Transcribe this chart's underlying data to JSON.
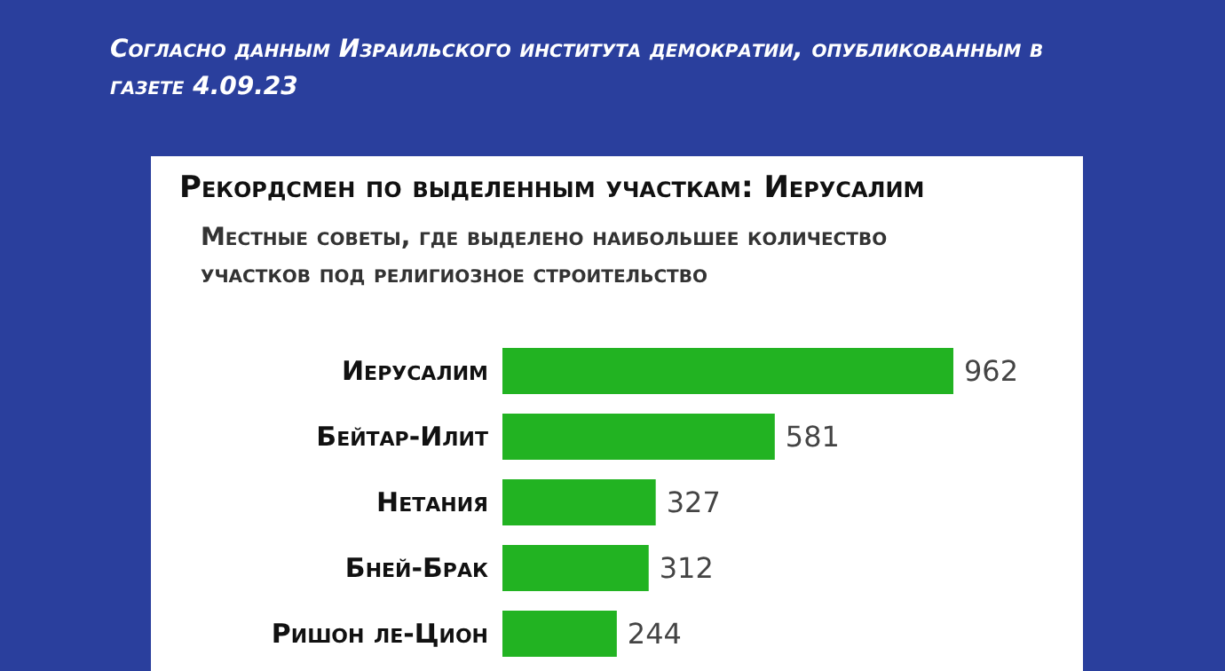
{
  "chart_data": {
    "type": "bar",
    "orientation": "horizontal",
    "title": "Рекордсмен по выделенным участкам: Иерусалим",
    "subtitle": "Местные советы, где выделено наибольшее количество участков под религиозное строительство",
    "annotations": [
      "Согласно данным Израильского института демократии, опубликованным в газете 4.09.23"
    ],
    "categories": [
      "Иерусалим",
      "Бейтар-Илит",
      "Нетания",
      "Бней-Брак",
      "Ришон ле-Цион"
    ],
    "values": [
      962,
      581,
      327,
      312,
      244
    ],
    "color": "#22b322",
    "data_labels": true,
    "grid": false,
    "legend": false
  }
}
